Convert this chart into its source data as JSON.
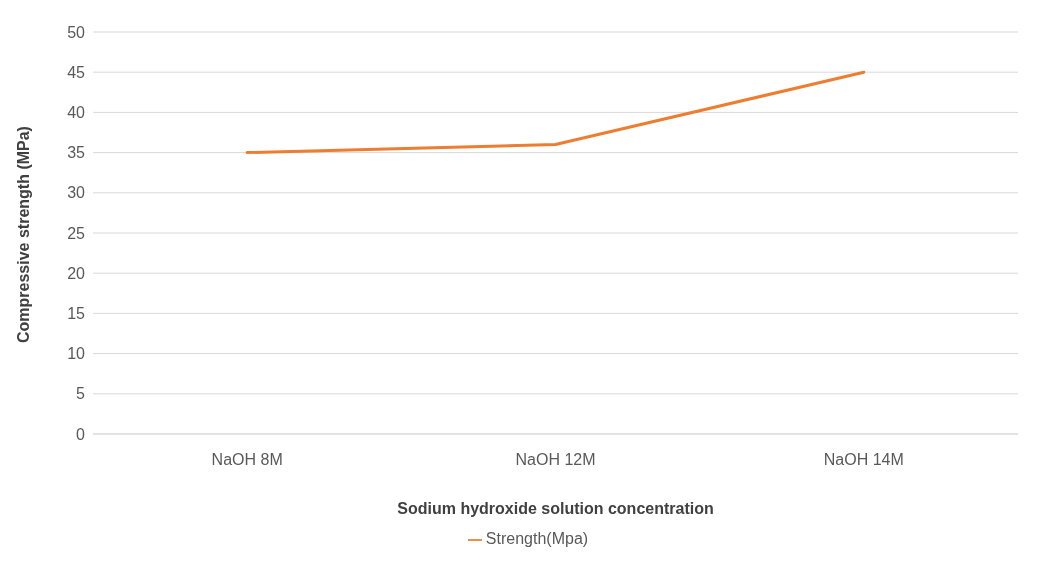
{
  "chart_data": {
    "type": "line",
    "xlabel": "Sodium hydroxide solution concentration",
    "ylabel": "Compressive strength (MPa)",
    "categories": [
      "NaOH 8M",
      "NaOH 12M",
      "NaOH 14M"
    ],
    "series": [
      {
        "name": "Strength(Mpa)",
        "color": "#ed7d31",
        "values": [
          35,
          36,
          45
        ]
      }
    ],
    "ylim": [
      0,
      50
    ],
    "yticks": [
      0,
      5,
      10,
      15,
      20,
      25,
      30,
      35,
      40,
      45,
      50
    ],
    "grid": "y",
    "legend": "bottom",
    "marker": "none",
    "line_style": "solid"
  }
}
